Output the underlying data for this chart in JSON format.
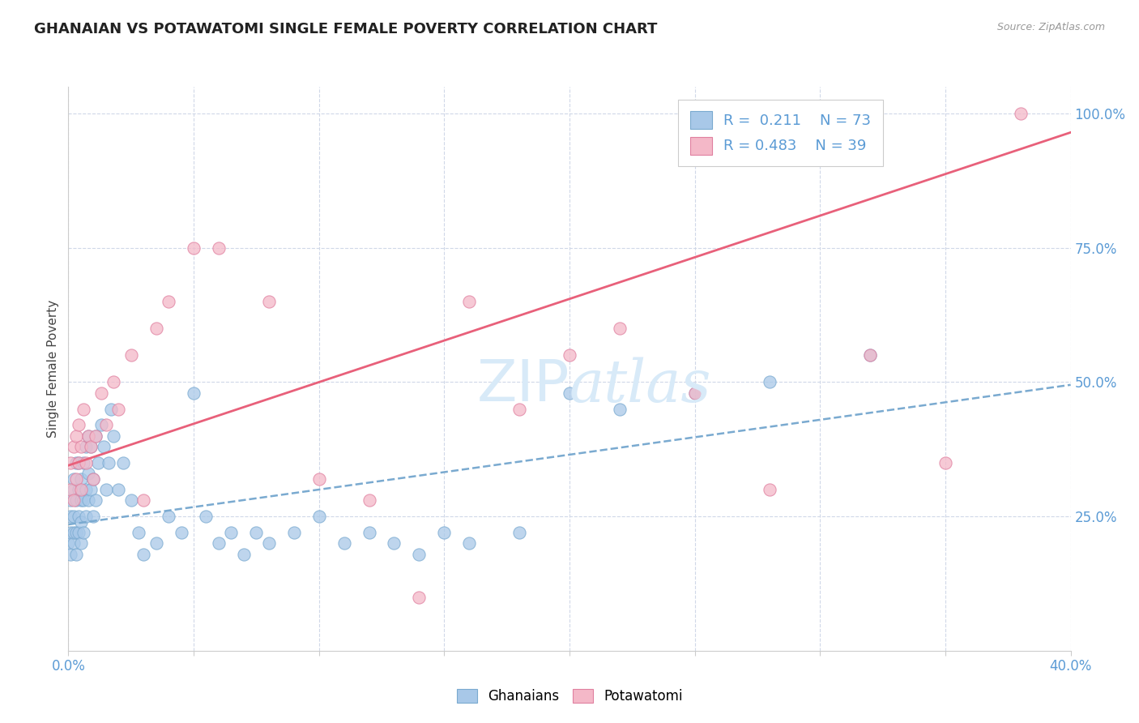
{
  "title": "GHANAIAN VS POTAWATOMI SINGLE FEMALE POVERTY CORRELATION CHART",
  "source": "Source: ZipAtlas.com",
  "xlabel_ghanaian": "Ghanaians",
  "xlabel_potawatomi": "Potawatomi",
  "ylabel": "Single Female Poverty",
  "xlim": [
    0.0,
    0.4
  ],
  "ylim": [
    0.0,
    1.05
  ],
  "xticks": [
    0.0,
    0.05,
    0.1,
    0.15,
    0.2,
    0.25,
    0.3,
    0.35,
    0.4
  ],
  "ytick_positions": [
    0.25,
    0.5,
    0.75,
    1.0
  ],
  "ytick_labels": [
    "25.0%",
    "50.0%",
    "75.0%",
    "100.0%"
  ],
  "ghanaian_color": "#a8c8e8",
  "ghanaian_edge_color": "#7aaad0",
  "potawatomi_color": "#f4b8c8",
  "potawatomi_edge_color": "#e080a0",
  "ghanaian_line_color": "#7aaad0",
  "potawatomi_line_color": "#e8607a",
  "legend_R_ghanaian": "0.211",
  "legend_N_ghanaian": "73",
  "legend_R_potawatomi": "0.483",
  "legend_N_potawatomi": "39",
  "background_color": "#ffffff",
  "grid_color": "#d0d8e8",
  "title_fontsize": 13,
  "tick_label_color": "#5b9bd5",
  "watermark_color": "#d8eaf8",
  "ghanaian_trendline_intercept": 0.235,
  "ghanaian_trendline_slope": 0.65,
  "potawatomi_trendline_intercept": 0.345,
  "potawatomi_trendline_slope": 1.55,
  "ghanaian_x": [
    0.0,
    0.001,
    0.001,
    0.001,
    0.001,
    0.002,
    0.002,
    0.002,
    0.002,
    0.002,
    0.003,
    0.003,
    0.003,
    0.003,
    0.004,
    0.004,
    0.004,
    0.004,
    0.005,
    0.005,
    0.005,
    0.005,
    0.006,
    0.006,
    0.006,
    0.007,
    0.007,
    0.007,
    0.008,
    0.008,
    0.008,
    0.009,
    0.009,
    0.01,
    0.01,
    0.011,
    0.011,
    0.012,
    0.013,
    0.014,
    0.015,
    0.016,
    0.017,
    0.018,
    0.02,
    0.022,
    0.025,
    0.028,
    0.03,
    0.035,
    0.04,
    0.045,
    0.05,
    0.055,
    0.06,
    0.065,
    0.07,
    0.075,
    0.08,
    0.09,
    0.1,
    0.11,
    0.12,
    0.13,
    0.14,
    0.15,
    0.16,
    0.18,
    0.2,
    0.22,
    0.25,
    0.28,
    0.32
  ],
  "ghanaian_y": [
    0.2,
    0.18,
    0.22,
    0.25,
    0.28,
    0.2,
    0.22,
    0.25,
    0.3,
    0.32,
    0.18,
    0.22,
    0.28,
    0.35,
    0.22,
    0.25,
    0.3,
    0.35,
    0.2,
    0.24,
    0.28,
    0.32,
    0.22,
    0.28,
    0.35,
    0.25,
    0.3,
    0.38,
    0.28,
    0.33,
    0.4,
    0.3,
    0.38,
    0.25,
    0.32,
    0.28,
    0.4,
    0.35,
    0.42,
    0.38,
    0.3,
    0.35,
    0.45,
    0.4,
    0.3,
    0.35,
    0.28,
    0.22,
    0.18,
    0.2,
    0.25,
    0.22,
    0.48,
    0.25,
    0.2,
    0.22,
    0.18,
    0.22,
    0.2,
    0.22,
    0.25,
    0.2,
    0.22,
    0.2,
    0.18,
    0.22,
    0.2,
    0.22,
    0.48,
    0.45,
    0.48,
    0.5,
    0.55
  ],
  "potawatomi_x": [
    0.001,
    0.001,
    0.002,
    0.002,
    0.003,
    0.003,
    0.004,
    0.004,
    0.005,
    0.005,
    0.006,
    0.007,
    0.008,
    0.009,
    0.01,
    0.011,
    0.013,
    0.015,
    0.018,
    0.02,
    0.025,
    0.03,
    0.035,
    0.04,
    0.05,
    0.06,
    0.08,
    0.1,
    0.12,
    0.14,
    0.16,
    0.18,
    0.2,
    0.22,
    0.25,
    0.28,
    0.32,
    0.35,
    0.38
  ],
  "potawatomi_y": [
    0.3,
    0.35,
    0.28,
    0.38,
    0.32,
    0.4,
    0.35,
    0.42,
    0.3,
    0.38,
    0.45,
    0.35,
    0.4,
    0.38,
    0.32,
    0.4,
    0.48,
    0.42,
    0.5,
    0.45,
    0.55,
    0.28,
    0.6,
    0.65,
    0.75,
    0.75,
    0.65,
    0.32,
    0.28,
    0.1,
    0.65,
    0.45,
    0.55,
    0.6,
    0.48,
    0.3,
    0.55,
    0.35,
    1.0
  ]
}
